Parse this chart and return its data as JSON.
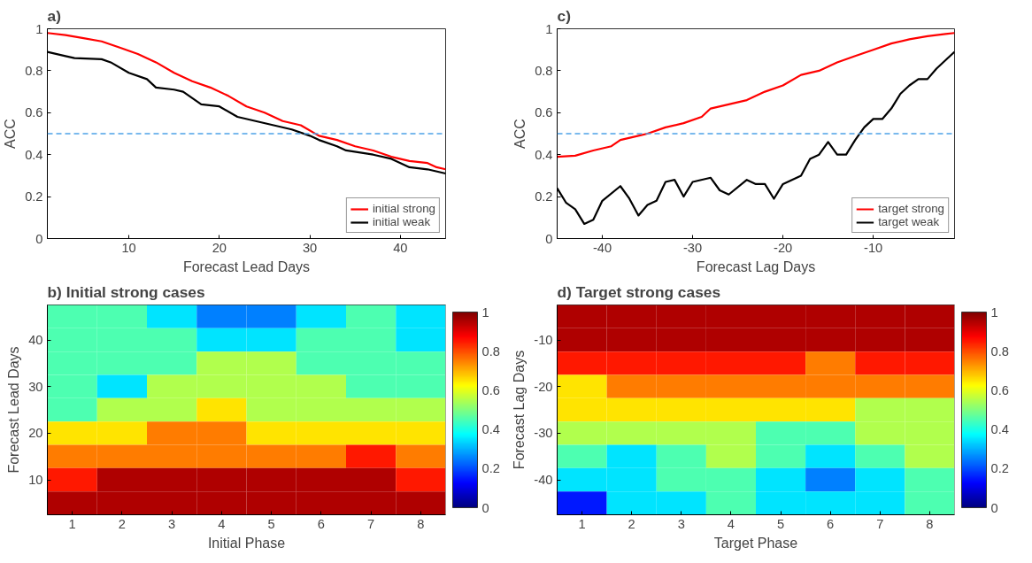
{
  "chart_data": [
    {
      "type": "line",
      "title": "a)",
      "xlabel": "Forecast Lead Days",
      "ylabel": "ACC",
      "xlim": [
        1,
        45
      ],
      "xticks": [
        10,
        20,
        30,
        40
      ],
      "ylim": [
        0,
        1
      ],
      "yticks": [
        0,
        0.2,
        0.4,
        0.6,
        0.8,
        1
      ],
      "grid": false,
      "legend": "bottom right",
      "line_style": "solid",
      "ref_lines": [
        {
          "axis": "y",
          "value": 0.5,
          "color": "#4da3e8",
          "line_style": "dashed"
        }
      ],
      "series": [
        {
          "name": "initial strong",
          "color": "#ff0000",
          "x": [
            1,
            3,
            5,
            7,
            9,
            11,
            13,
            15,
            17,
            19,
            21,
            23,
            25,
            27,
            29,
            31,
            33,
            35,
            37,
            39,
            41,
            43,
            44,
            45
          ],
          "values": [
            0.98,
            0.97,
            0.955,
            0.94,
            0.91,
            0.88,
            0.84,
            0.79,
            0.75,
            0.72,
            0.68,
            0.63,
            0.6,
            0.56,
            0.54,
            0.49,
            0.47,
            0.44,
            0.42,
            0.39,
            0.37,
            0.36,
            0.34,
            0.33
          ]
        },
        {
          "name": "initial weak",
          "color": "#000000",
          "x": [
            1,
            3,
            4,
            7,
            8,
            10,
            12,
            13,
            15,
            16,
            18,
            20,
            22,
            24,
            26,
            28,
            30,
            31,
            33,
            34,
            37,
            39,
            41,
            43,
            45
          ],
          "values": [
            0.89,
            0.87,
            0.86,
            0.855,
            0.84,
            0.79,
            0.76,
            0.72,
            0.71,
            0.7,
            0.64,
            0.63,
            0.58,
            0.56,
            0.54,
            0.52,
            0.49,
            0.47,
            0.44,
            0.42,
            0.4,
            0.38,
            0.34,
            0.33,
            0.31
          ]
        }
      ]
    },
    {
      "type": "line",
      "title": "c)",
      "xlabel": "Forecast Lag Days",
      "ylabel": "ACC",
      "xlim": [
        -45,
        -1
      ],
      "xticks": [
        -40,
        -30,
        -20,
        -10
      ],
      "ylim": [
        0,
        1
      ],
      "yticks": [
        0,
        0.2,
        0.4,
        0.6,
        0.8,
        1
      ],
      "grid": false,
      "legend": "bottom right",
      "line_style": "solid",
      "ref_lines": [
        {
          "axis": "y",
          "value": 0.5,
          "color": "#4da3e8",
          "line_style": "dashed"
        }
      ],
      "series": [
        {
          "name": "target strong",
          "color": "#ff0000",
          "x": [
            -45,
            -43,
            -41,
            -39,
            -38,
            -36,
            -35,
            -33,
            -31,
            -29,
            -28,
            -26,
            -24,
            -22,
            -20,
            -18,
            -16,
            -14,
            -12,
            -10,
            -8,
            -6,
            -4,
            -2,
            -1
          ],
          "values": [
            0.39,
            0.395,
            0.42,
            0.44,
            0.47,
            0.49,
            0.5,
            0.53,
            0.55,
            0.58,
            0.62,
            0.64,
            0.66,
            0.7,
            0.73,
            0.78,
            0.8,
            0.84,
            0.87,
            0.9,
            0.93,
            0.95,
            0.965,
            0.975,
            0.98
          ]
        },
        {
          "name": "target weak",
          "color": "#000000",
          "x": [
            -45,
            -44,
            -43,
            -42,
            -41,
            -40,
            -38,
            -37,
            -36,
            -35,
            -34,
            -33,
            -32,
            -31,
            -30,
            -28,
            -27,
            -26,
            -24,
            -23,
            -22,
            -21,
            -20,
            -18,
            -17,
            -16,
            -15,
            -14,
            -13,
            -12,
            -11,
            -10,
            -9,
            -8,
            -7,
            -6,
            -5,
            -4,
            -3,
            -2,
            -1
          ],
          "values": [
            0.24,
            0.17,
            0.14,
            0.07,
            0.09,
            0.18,
            0.25,
            0.19,
            0.11,
            0.16,
            0.18,
            0.27,
            0.28,
            0.2,
            0.27,
            0.29,
            0.23,
            0.21,
            0.28,
            0.26,
            0.26,
            0.19,
            0.26,
            0.3,
            0.38,
            0.4,
            0.46,
            0.4,
            0.4,
            0.47,
            0.53,
            0.57,
            0.57,
            0.62,
            0.69,
            0.73,
            0.76,
            0.76,
            0.81,
            0.85,
            0.89
          ]
        }
      ]
    },
    {
      "type": "heatmap",
      "title": "b) Initial strong cases",
      "xlabel": "Initial Phase",
      "ylabel": "Forecast Lead Days",
      "clim": [
        0,
        1
      ],
      "cticks": [
        0,
        0.2,
        0.4,
        0.6,
        0.8,
        1
      ],
      "categories": [
        "1",
        "2",
        "3",
        "4",
        "5",
        "6",
        "7",
        "8"
      ],
      "y_categories": [
        null,
        "40",
        null,
        "30",
        null,
        "20",
        null,
        "10",
        null
      ],
      "cells": [
        [
          0.45,
          0.45,
          0.35,
          0.25,
          0.25,
          0.35,
          0.45,
          0.35
        ],
        [
          0.45,
          0.45,
          0.45,
          0.35,
          0.35,
          0.45,
          0.45,
          0.35
        ],
        [
          0.45,
          0.45,
          0.45,
          0.55,
          0.55,
          0.45,
          0.45,
          0.45
        ],
        [
          0.45,
          0.35,
          0.55,
          0.55,
          0.55,
          0.55,
          0.45,
          0.45
        ],
        [
          0.45,
          0.55,
          0.55,
          0.65,
          0.55,
          0.55,
          0.55,
          0.55
        ],
        [
          0.65,
          0.65,
          0.75,
          0.75,
          0.65,
          0.65,
          0.65,
          0.65
        ],
        [
          0.75,
          0.75,
          0.75,
          0.75,
          0.75,
          0.75,
          0.85,
          0.75
        ],
        [
          0.85,
          0.95,
          0.95,
          0.95,
          0.95,
          0.95,
          0.95,
          0.85
        ],
        [
          0.95,
          0.95,
          0.95,
          0.95,
          0.95,
          0.95,
          0.95,
          0.95
        ]
      ]
    },
    {
      "type": "heatmap",
      "title": "d) Target strong cases",
      "xlabel": "Target Phase",
      "ylabel": "Forecast Lag Days",
      "clim": [
        0,
        1
      ],
      "cticks": [
        0,
        0.2,
        0.4,
        0.6,
        0.8,
        1
      ],
      "categories": [
        "1",
        "2",
        "3",
        "4",
        "5",
        "6",
        "7",
        "8"
      ],
      "y_categories": [
        null,
        "-10",
        null,
        "-20",
        null,
        "-30",
        null,
        "-40",
        null
      ],
      "cells": [
        [
          0.95,
          0.95,
          0.95,
          0.95,
          0.95,
          0.95,
          0.95,
          0.95
        ],
        [
          0.95,
          0.95,
          0.95,
          0.95,
          0.95,
          0.95,
          0.95,
          0.95
        ],
        [
          0.85,
          0.85,
          0.85,
          0.85,
          0.85,
          0.75,
          0.85,
          0.85
        ],
        [
          0.65,
          0.75,
          0.75,
          0.75,
          0.75,
          0.75,
          0.75,
          0.75
        ],
        [
          0.65,
          0.65,
          0.65,
          0.65,
          0.65,
          0.65,
          0.55,
          0.55
        ],
        [
          0.55,
          0.55,
          0.55,
          0.55,
          0.45,
          0.45,
          0.55,
          0.55
        ],
        [
          0.45,
          0.35,
          0.45,
          0.55,
          0.45,
          0.35,
          0.45,
          0.55
        ],
        [
          0.35,
          0.35,
          0.45,
          0.45,
          0.35,
          0.25,
          0.35,
          0.45
        ],
        [
          0.15,
          0.35,
          0.35,
          0.45,
          0.35,
          0.35,
          0.35,
          0.45
        ]
      ]
    }
  ]
}
